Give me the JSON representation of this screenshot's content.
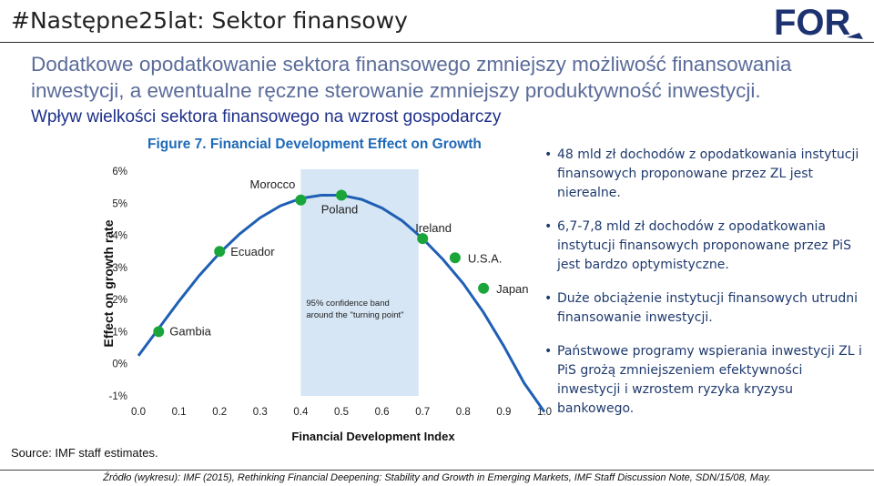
{
  "header": {
    "title": "#Następne25lat: Sektor finansowy",
    "logo_text": "FOR",
    "brand_color": "#1d3270"
  },
  "subtitle": {
    "line1": "Dodatkowe opodatkowanie sektora finansowego zmniejszy możliwość finansowania",
    "line2": "inwestycji, a ewentualne ręczne sterowanie zmniejszy produktywność inwestycji.",
    "line3": "Wpływ wielkości sektora finansowego na wzrost gospodarczy"
  },
  "chart_data": {
    "type": "line",
    "title": "Figure 7. Financial Development Effect on Growth",
    "xlabel": "Financial Development Index",
    "ylabel": "Effect on growth rate",
    "xlim": [
      0.0,
      1.0
    ],
    "ylim": [
      -1,
      6
    ],
    "x_ticks": [
      "0.0",
      "0.1",
      "0.2",
      "0.3",
      "0.4",
      "0.5",
      "0.6",
      "0.7",
      "0.8",
      "0.9",
      "1.0"
    ],
    "y_ticks": [
      "6%",
      "5%",
      "4%",
      "3%",
      "2%",
      "1%",
      "0%",
      "-1%"
    ],
    "y_tick_values": [
      6,
      5,
      4,
      3,
      2,
      1,
      0,
      -1
    ],
    "curve": {
      "x": [
        0.0,
        0.05,
        0.1,
        0.15,
        0.2,
        0.25,
        0.3,
        0.35,
        0.4,
        0.45,
        0.5,
        0.55,
        0.6,
        0.65,
        0.7,
        0.75,
        0.8,
        0.85,
        0.9,
        0.95,
        1.0
      ],
      "y": [
        0.25,
        1.1,
        1.95,
        2.75,
        3.45,
        4.05,
        4.55,
        4.92,
        5.15,
        5.25,
        5.25,
        5.12,
        4.85,
        4.45,
        3.9,
        3.25,
        2.5,
        1.6,
        0.55,
        -0.6,
        -1.5
      ]
    },
    "points": [
      {
        "label": "Gambia",
        "x": 0.05,
        "y": 1.0
      },
      {
        "label": "Ecuador",
        "x": 0.2,
        "y": 3.5
      },
      {
        "label": "Morocco",
        "x": 0.4,
        "y": 5.1
      },
      {
        "label": "Poland",
        "x": 0.5,
        "y": 5.25
      },
      {
        "label": "Ireland",
        "x": 0.7,
        "y": 3.9
      },
      {
        "label": "U.S.A.",
        "x": 0.78,
        "y": 3.3
      },
      {
        "label": "Japan",
        "x": 0.85,
        "y": 2.35
      }
    ],
    "band": {
      "x0": 0.4,
      "x1": 0.69,
      "label1": "95%  confidence band",
      "label2": "around the \"turning point\""
    },
    "colors": {
      "curve": "#1f5fb4",
      "points": "#1aa53a",
      "band": "#d6e6f5",
      "title": "#1f6ab8"
    },
    "source": "Source: IMF staff estimates."
  },
  "bullets": [
    "48 mld  zł dochodów z opodatkowania instytucji finansowych proponowane przez ZL jest nierealne.",
    "6,7-7,8 mld zł dochodów z opodatkowania instytucji finansowych proponowane przez PiS jest bardzo optymistyczne.",
    "Duże obciążenie instytucji finansowych utrudni finansowanie inwestycji.",
    "Państwowe programy wspierania inwestycji ZL i PiS grożą zmniejszeniem efektywności inwestycji i wzrostem ryzyka kryzysu bankowego."
  ],
  "footer": {
    "source": "Źródło (wykresu): IMF (2015), Rethinking Financial Deepening: Stability and Growth in Emerging Markets, IMF Staff Discussion Note, SDN/15/08, May."
  }
}
